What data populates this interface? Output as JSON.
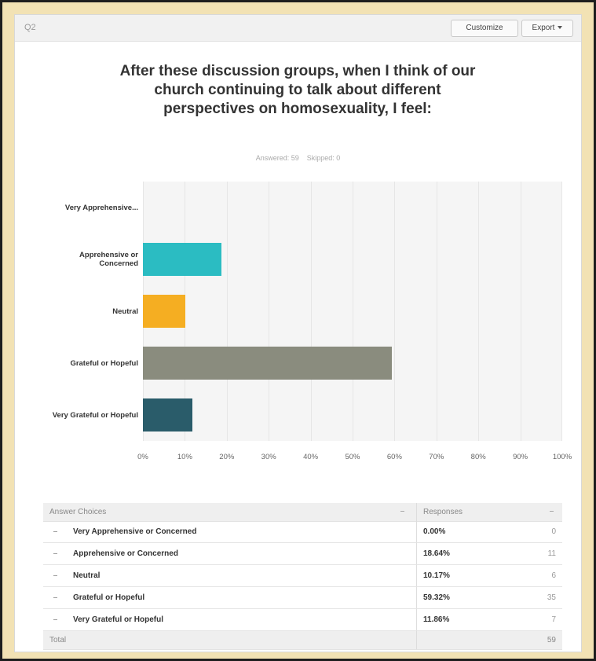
{
  "header": {
    "question": "Q2",
    "buttons": [
      "Customize",
      "Export"
    ]
  },
  "chart_data": {
    "type": "bar",
    "orientation": "horizontal",
    "title": "After these discussion groups, when I think of our church continuing to talk about different perspectives on homosexuality, I feel:",
    "subtitle": [
      "Answered: 59",
      "Skipped: 0"
    ],
    "categories": [
      "Very Apprehensive...",
      "Apprehensive or Concerned",
      "Neutral",
      "Grateful or Hopeful",
      "Very Grateful or Hopeful"
    ],
    "values": [
      0,
      18.64,
      10.17,
      59.32,
      11.86
    ],
    "colors": [
      "#2f8f95",
      "#2bbcc2",
      "#f5ae22",
      "#8a8c7e",
      "#2a5c6a"
    ],
    "xlim": [
      0,
      100
    ],
    "xticks": [
      {
        "value": 0,
        "label": "0%"
      },
      {
        "value": 10,
        "label": "10%"
      },
      {
        "value": 20,
        "label": "20%"
      },
      {
        "value": 30,
        "label": "30%"
      },
      {
        "value": 40,
        "label": "40%"
      },
      {
        "value": 50,
        "label": "50%"
      },
      {
        "value": 60,
        "label": "60%"
      },
      {
        "value": 70,
        "label": "70%"
      },
      {
        "value": 80,
        "label": "80%"
      },
      {
        "value": 90,
        "label": "90%"
      },
      {
        "value": 100,
        "label": "100%"
      }
    ],
    "grid": true
  },
  "table": {
    "columns": [
      "Answer Choices",
      "Responses"
    ],
    "rows": [
      [
        "Very Apprehensive or Concerned",
        "0.00%",
        0
      ],
      [
        "Apprehensive or Concerned",
        "18.64%",
        11
      ],
      [
        "Neutral",
        "10.17%",
        6
      ],
      [
        "Grateful or Hopeful",
        "59.32%",
        35
      ],
      [
        "Very Grateful or Hopeful",
        "11.86%",
        7
      ]
    ],
    "total": [
      "Total",
      59
    ]
  }
}
